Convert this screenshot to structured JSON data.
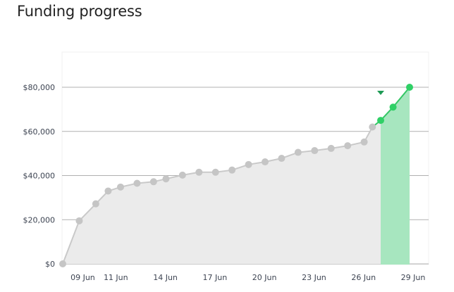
{
  "page_title": "Funding progress",
  "colors": {
    "plot_background": "#ffffff",
    "past_area": "#ebebeb",
    "past_line": "#c9c9c9",
    "past_point": "#c5c5c5",
    "recent_area": "#a7e6bf",
    "recent_line": "#34c765",
    "recent_point": "#2fd066",
    "marker": "#1e9a55",
    "grid": "#b0b0b0"
  },
  "chart_data": {
    "type": "area",
    "title": "Funding progress",
    "xlabel": "",
    "ylabel": "",
    "ylim": [
      0,
      80000
    ],
    "y_ticks": [
      0,
      20000,
      40000,
      60000,
      80000
    ],
    "y_tick_labels": [
      "$0",
      "$20,000",
      "$40,000",
      "$60,000",
      "$80,000"
    ],
    "x_ticks": [
      9,
      11,
      14,
      17,
      20,
      23,
      26,
      29
    ],
    "x_tick_labels": [
      "09 Jun",
      "11 Jun",
      "14 Jun",
      "17 Jun",
      "20 Jun",
      "23 Jun",
      "26 Jun",
      "29 Jun"
    ],
    "xlim": [
      8,
      29
    ],
    "grid": true,
    "highlight_from": 27.25,
    "marker_at": 27.25,
    "series": [
      {
        "values": [
          [
            8,
            0
          ],
          [
            9,
            19500
          ],
          [
            10,
            27200
          ],
          [
            10.75,
            33000
          ],
          [
            11.5,
            34800
          ],
          [
            12.5,
            36500
          ],
          [
            13.5,
            37200
          ],
          [
            14.25,
            38500
          ],
          [
            15.25,
            40200
          ],
          [
            16.25,
            41500
          ],
          [
            17.25,
            41500
          ],
          [
            18.25,
            42500
          ],
          [
            19.25,
            45000
          ],
          [
            20.25,
            46200
          ],
          [
            21.25,
            47800
          ],
          [
            22.25,
            50500
          ],
          [
            23.25,
            51300
          ],
          [
            24.25,
            52300
          ],
          [
            25.25,
            53500
          ],
          [
            26.25,
            55200
          ],
          [
            26.75,
            62000
          ]
        ]
      },
      {
        "values": [
          [
            27.25,
            65000
          ],
          [
            28,
            71000
          ],
          [
            29,
            80000
          ]
        ]
      }
    ]
  }
}
